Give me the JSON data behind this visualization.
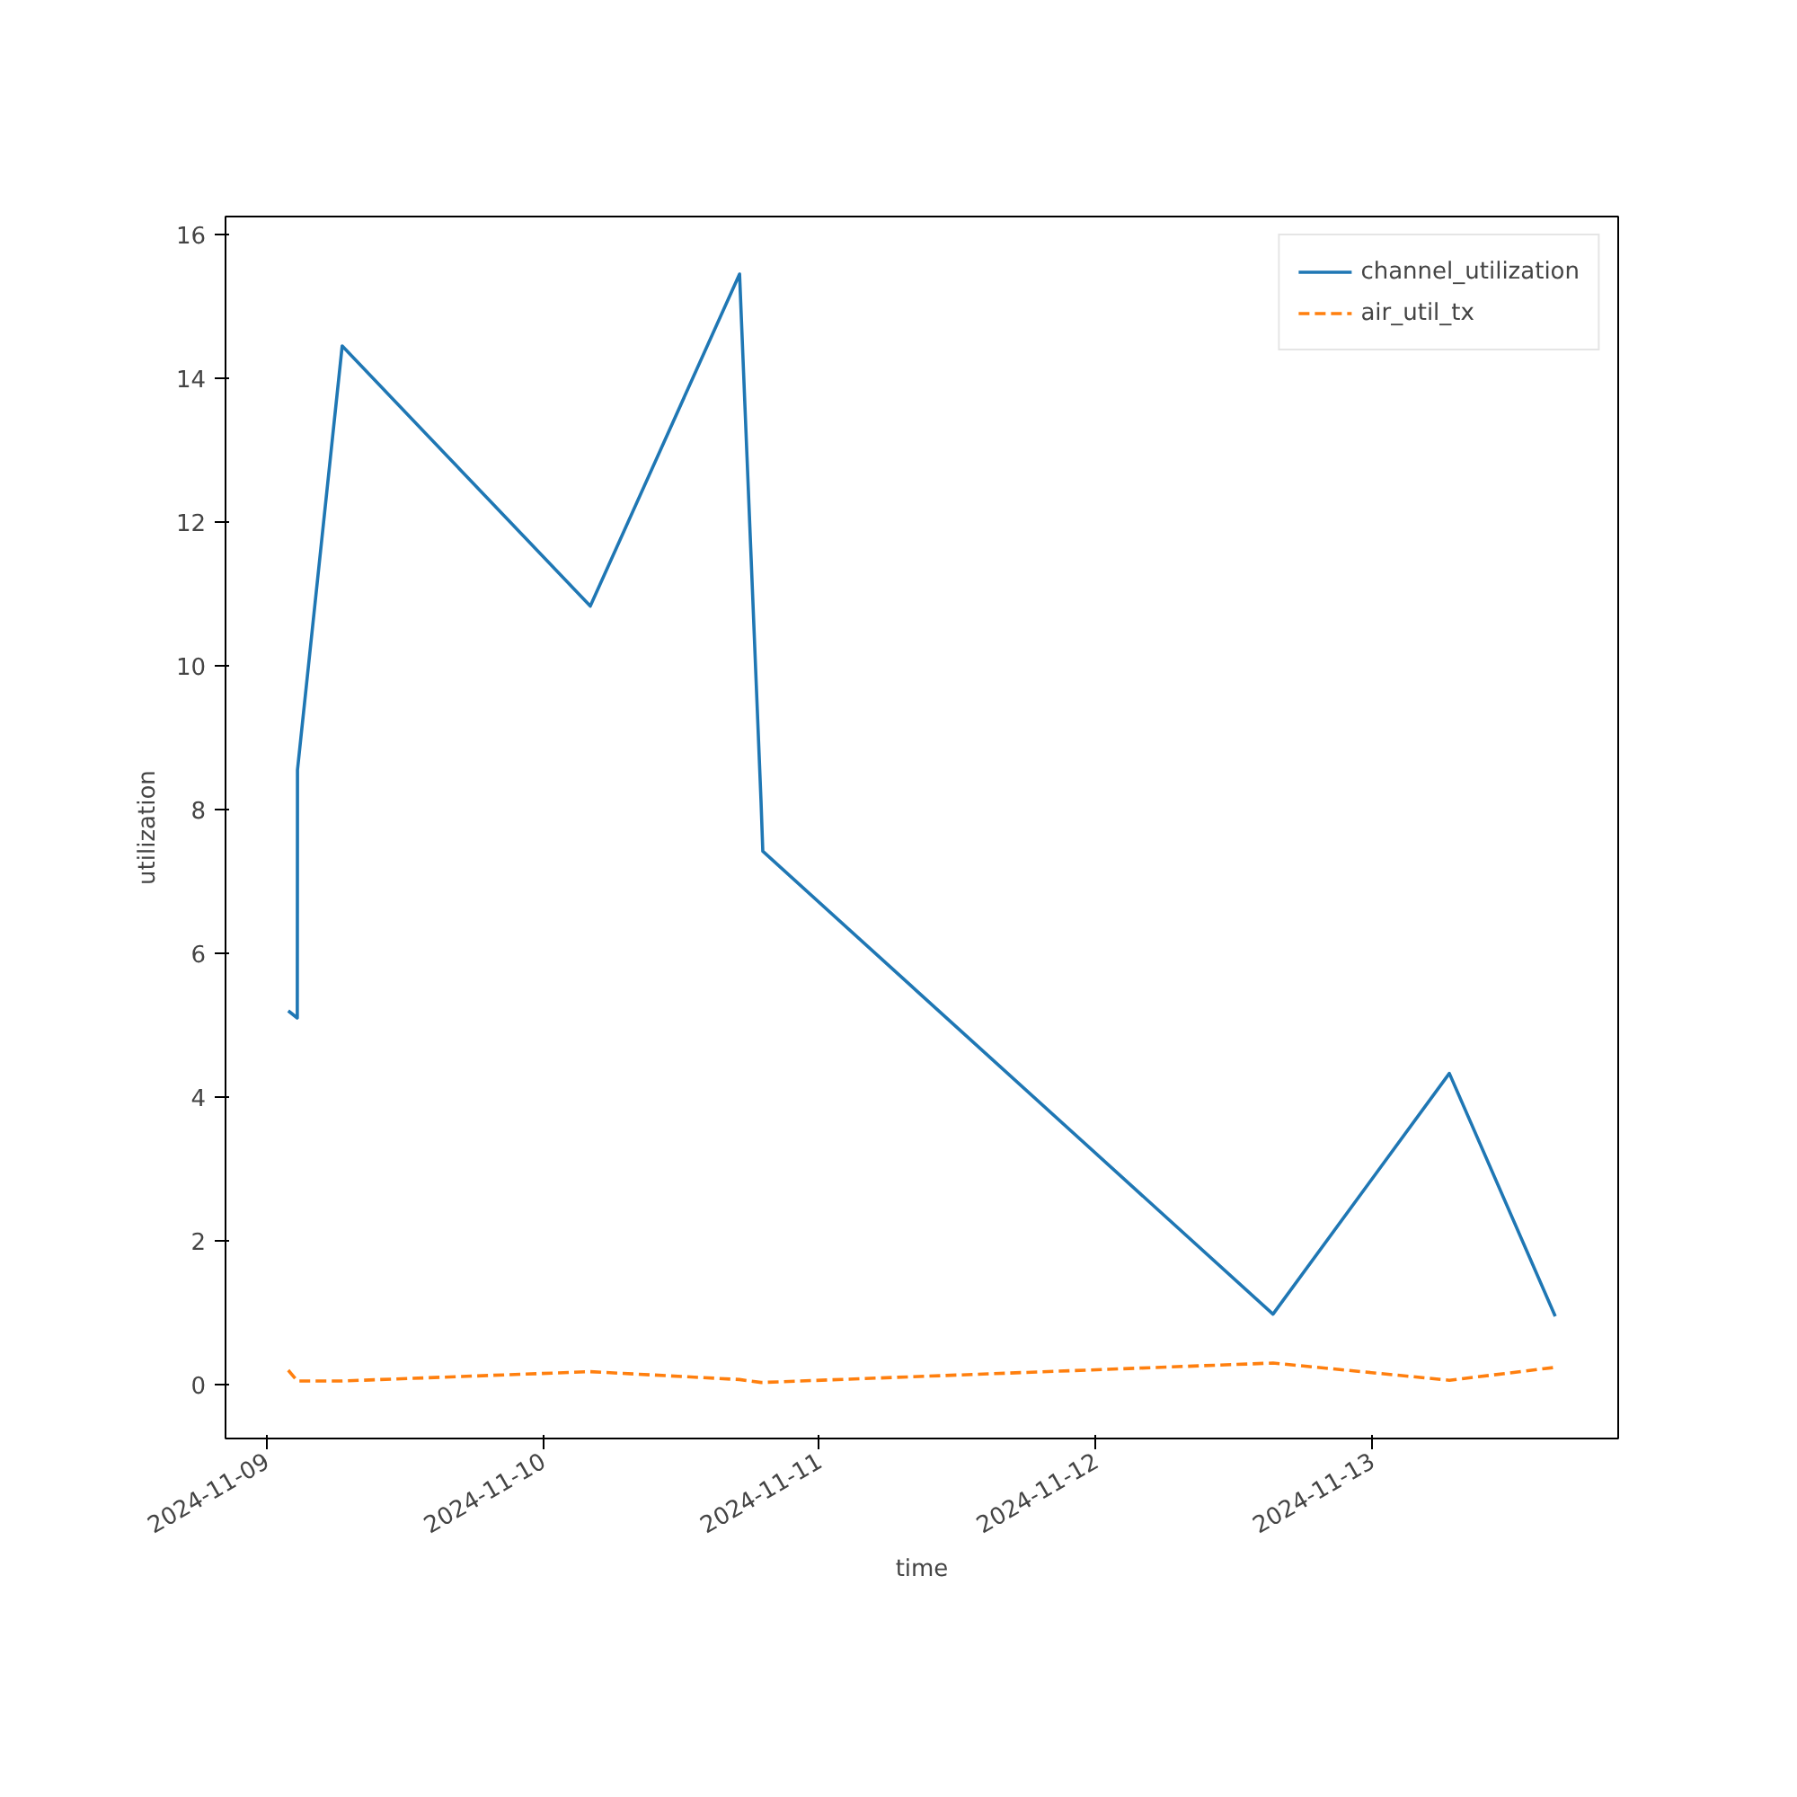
{
  "chart_data": {
    "type": "line",
    "xlabel": "time",
    "ylabel": "utilization",
    "x": [
      "2024-11-09T01:52",
      "2024-11-09T02:39",
      "2024-11-09T02:40",
      "2024-11-09T06:33",
      "2024-11-10T04:06",
      "2024-11-10T17:04",
      "2024-11-10T18:56",
      "2024-11-10T19:05",
      "2024-11-12T15:24",
      "2024-11-13T06:43",
      "2024-11-13T15:55"
    ],
    "series": [
      {
        "name": "channel_utilization",
        "color": "#1f77b4",
        "line_style": "solid",
        "values": [
          5.2,
          5.1,
          8.55,
          14.45,
          10.83,
          15.45,
          8.1,
          7.42,
          0.98,
          4.33,
          0.95
        ]
      },
      {
        "name": "air_util_tx",
        "color": "#ff7f0e",
        "line_style": "dashed",
        "values": [
          0.2,
          0.05,
          0.05,
          0.05,
          0.18,
          0.07,
          0.03,
          0.03,
          0.3,
          0.06,
          0.24
        ]
      }
    ],
    "xlim": [
      "2024-11-08T20:25",
      "2024-11-13T21:23"
    ],
    "xticks": [
      "2024-11-09",
      "2024-11-10",
      "2024-11-11",
      "2024-11-12",
      "2024-11-13"
    ],
    "ylim": [
      -0.75,
      16.25
    ],
    "yticks": [
      0,
      2,
      4,
      6,
      8,
      10,
      12,
      14,
      16
    ],
    "grid": false,
    "legend": "top right",
    "marker": "none"
  }
}
